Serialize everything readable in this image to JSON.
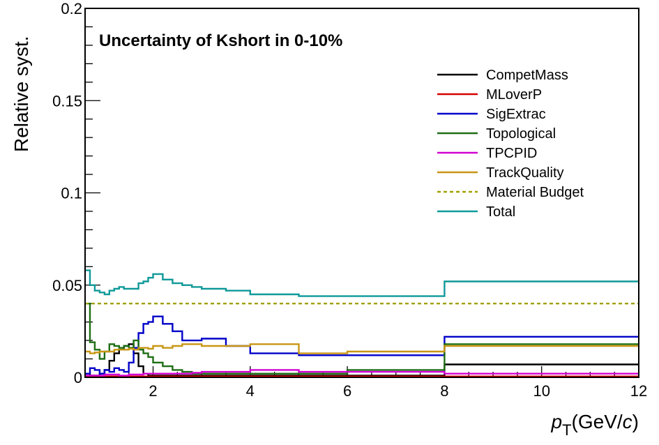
{
  "chart_data": {
    "type": "line",
    "style": "step",
    "title": "Uncertainty of Kshort in 0-10%",
    "ylabel": "Relative syst.",
    "xlabel": {
      "symbol": "p",
      "subscript": "T",
      "unit": "(GeV/",
      "unit_var": "c",
      "unit_close": ")"
    },
    "xlim": [
      0.6,
      12
    ],
    "ylim": [
      0,
      0.2
    ],
    "x_ticks": [
      2,
      4,
      6,
      8,
      10,
      12
    ],
    "x_tick_labels": [
      "2",
      "4",
      "6",
      "8",
      "10",
      "12"
    ],
    "y_ticks": [
      0,
      0.05,
      0.1,
      0.15,
      0.2
    ],
    "y_tick_labels": [
      "0",
      "0.05",
      "0.1",
      "0.15",
      "0.2"
    ],
    "grid": false,
    "legend_position": "top-right",
    "series": [
      {
        "name": "CompetMass",
        "color": "#000000",
        "dashed": false,
        "edges": [
          0.6,
          0.7,
          0.8,
          0.9,
          1.0,
          1.1,
          1.2,
          1.3,
          1.4,
          1.5,
          1.6,
          1.7,
          1.8,
          1.9,
          2.0,
          2.2,
          2.4,
          2.6,
          2.8,
          3.0,
          3.5,
          4.0,
          5.0,
          6.0,
          8.0,
          12.0
        ],
        "values": [
          0.002,
          0.001,
          0.001,
          0.002,
          0.004,
          0.009,
          0.013,
          0.015,
          0.017,
          0.018,
          0.013,
          0.006,
          0.002,
          0.001,
          0.001,
          0.001,
          0.001,
          0.001,
          0.001,
          0.001,
          0.001,
          0.001,
          0.001,
          0.001,
          0.007
        ]
      },
      {
        "name": "MLoverP",
        "color": "#d40000",
        "dashed": false,
        "edges": [
          0.6,
          1.0,
          2.0,
          4.0,
          6.0,
          8.0,
          12.0
        ],
        "values": [
          0.0005,
          0.0005,
          0.0005,
          0.0005,
          0.0005,
          0.0005
        ]
      },
      {
        "name": "SigExtrac",
        "color": "#0000c8",
        "dashed": false,
        "edges": [
          0.6,
          0.7,
          0.8,
          0.9,
          1.0,
          1.1,
          1.2,
          1.3,
          1.4,
          1.5,
          1.6,
          1.7,
          1.8,
          1.9,
          2.0,
          2.2,
          2.4,
          2.6,
          2.8,
          3.0,
          3.5,
          4.0,
          5.0,
          6.0,
          8.0,
          12.0
        ],
        "values": [
          0.002,
          0.005,
          0.004,
          0.002,
          0.004,
          0.003,
          0.005,
          0.004,
          0.003,
          0.008,
          0.016,
          0.024,
          0.029,
          0.03,
          0.033,
          0.029,
          0.025,
          0.02,
          0.02,
          0.021,
          0.017,
          0.013,
          0.012,
          0.012,
          0.022
        ]
      },
      {
        "name": "Topological",
        "color": "#1e6e14",
        "dashed": false,
        "edges": [
          0.6,
          0.7,
          0.8,
          0.9,
          1.0,
          1.1,
          1.2,
          1.3,
          1.4,
          1.5,
          1.6,
          1.7,
          1.8,
          1.9,
          2.0,
          2.2,
          2.4,
          2.6,
          2.8,
          3.0,
          3.5,
          4.0,
          5.0,
          6.0,
          8.0,
          12.0
        ],
        "values": [
          0.04,
          0.019,
          0.015,
          0.01,
          0.014,
          0.018,
          0.017,
          0.016,
          0.017,
          0.016,
          0.02,
          0.015,
          0.013,
          0.011,
          0.008,
          0.006,
          0.004,
          0.003,
          0.002,
          0.002,
          0.002,
          0.002,
          0.002,
          0.004,
          0.018
        ]
      },
      {
        "name": "TPCPID",
        "color": "#d200d2",
        "dashed": false,
        "edges": [
          0.6,
          0.7,
          0.8,
          0.9,
          1.0,
          1.1,
          1.2,
          1.3,
          1.4,
          1.5,
          1.6,
          1.7,
          1.8,
          1.9,
          2.0,
          2.2,
          2.4,
          2.6,
          2.8,
          3.0,
          3.5,
          4.0,
          5.0,
          6.0,
          8.0,
          12.0
        ],
        "values": [
          0.001,
          0.001,
          0.001,
          0.001,
          0.0015,
          0.0015,
          0.0015,
          0.001,
          0.001,
          0.0015,
          0.0015,
          0.0015,
          0.002,
          0.002,
          0.002,
          0.002,
          0.002,
          0.002,
          0.0025,
          0.003,
          0.003,
          0.004,
          0.003,
          0.003,
          0.002
        ]
      },
      {
        "name": "TrackQuality",
        "color": "#c89614",
        "dashed": false,
        "edges": [
          0.6,
          0.7,
          0.8,
          0.9,
          1.0,
          1.1,
          1.2,
          1.3,
          1.4,
          1.5,
          1.6,
          1.7,
          1.8,
          1.9,
          2.0,
          2.2,
          2.4,
          2.6,
          2.8,
          3.0,
          3.5,
          4.0,
          5.0,
          6.0,
          8.0,
          12.0
        ],
        "values": [
          0.014,
          0.013,
          0.0135,
          0.014,
          0.014,
          0.014,
          0.015,
          0.015,
          0.015,
          0.0155,
          0.015,
          0.016,
          0.016,
          0.0155,
          0.017,
          0.016,
          0.017,
          0.018,
          0.018,
          0.017,
          0.017,
          0.018,
          0.013,
          0.014,
          0.017
        ]
      },
      {
        "name": "Material Budget",
        "color": "#a0a000",
        "dashed": true,
        "edges": [
          0.6,
          12.0
        ],
        "values": [
          0.04
        ]
      },
      {
        "name": "Total",
        "color": "#0f9999",
        "dashed": false,
        "edges": [
          0.6,
          0.7,
          0.8,
          0.9,
          1.0,
          1.1,
          1.2,
          1.3,
          1.4,
          1.5,
          1.6,
          1.7,
          1.8,
          1.9,
          2.0,
          2.2,
          2.4,
          2.6,
          2.8,
          3.0,
          3.5,
          4.0,
          5.0,
          6.0,
          8.0,
          12.0
        ],
        "values": [
          0.058,
          0.05,
          0.047,
          0.046,
          0.045,
          0.047,
          0.048,
          0.049,
          0.048,
          0.048,
          0.048,
          0.051,
          0.052,
          0.054,
          0.056,
          0.053,
          0.051,
          0.05,
          0.049,
          0.048,
          0.047,
          0.045,
          0.044,
          0.044,
          0.052
        ]
      }
    ]
  }
}
